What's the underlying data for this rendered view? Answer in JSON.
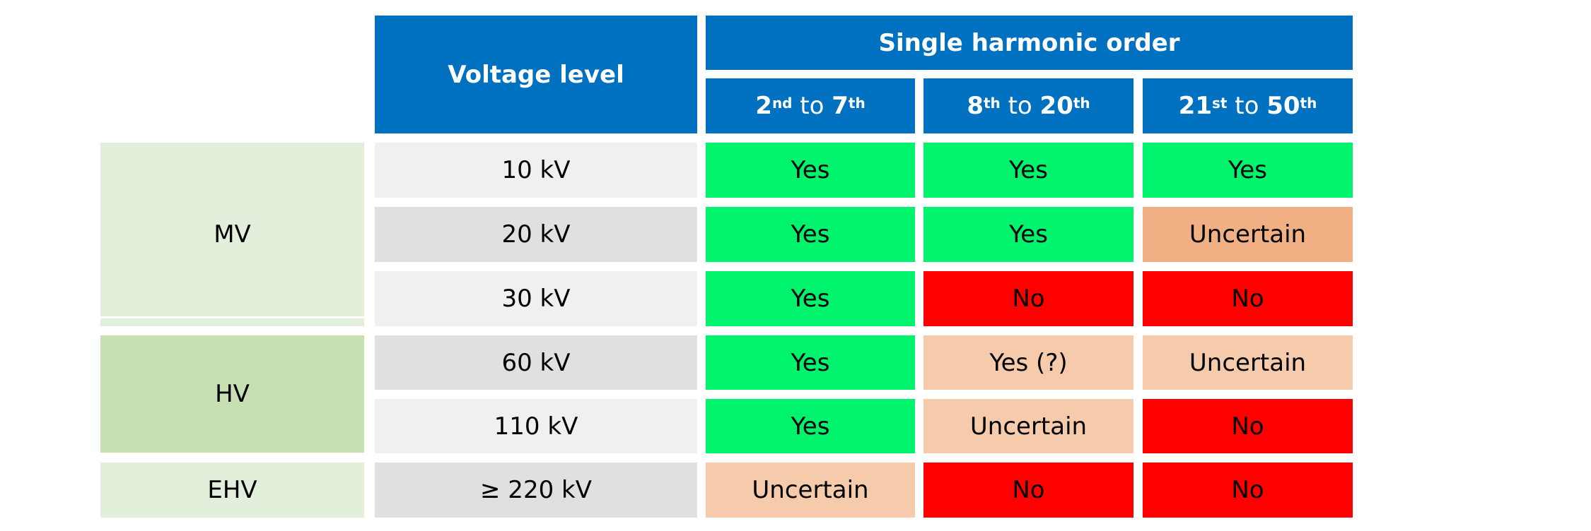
{
  "header": {
    "voltage_level": "Voltage level",
    "single_harmonic_order": "Single harmonic order",
    "orders": [
      {
        "start": "2",
        "start_sup": "nd",
        "to": " to ",
        "end": "7",
        "end_sup": "th"
      },
      {
        "start": "8",
        "start_sup": "th",
        "to": " to ",
        "end": "20",
        "end_sup": "th"
      },
      {
        "start": "21",
        "start_sup": "st",
        "to": " to ",
        "end": "50",
        "end_sup": "th"
      }
    ]
  },
  "groups": [
    "MV",
    "HV",
    "EHV"
  ],
  "rows": [
    {
      "voltage": "10 kV",
      "values": [
        "Yes",
        "Yes",
        "Yes"
      ]
    },
    {
      "voltage": "20 kV",
      "values": [
        "Yes",
        "Yes",
        "Uncertain"
      ]
    },
    {
      "voltage": "30 kV",
      "values": [
        "Yes",
        "No",
        "No"
      ]
    },
    {
      "voltage": "60 kV",
      "values": [
        "Yes",
        "Yes (?)",
        "Uncertain"
      ]
    },
    {
      "voltage": "110 kV",
      "values": [
        "Yes",
        "Uncertain",
        "No"
      ]
    },
    {
      "voltage": "≥ 220 kV",
      "values": [
        "Uncertain",
        "No",
        "No"
      ]
    }
  ],
  "colors": {
    "header_blue": "#0070c0",
    "yes_green": "#00f36c",
    "no_red": "#ff0000",
    "uncertain_orange": "#f0b084",
    "uncertain_peach": "#f5cbac",
    "group_light_green": "#e2efda",
    "group_mid_green": "#c6e0b4"
  }
}
